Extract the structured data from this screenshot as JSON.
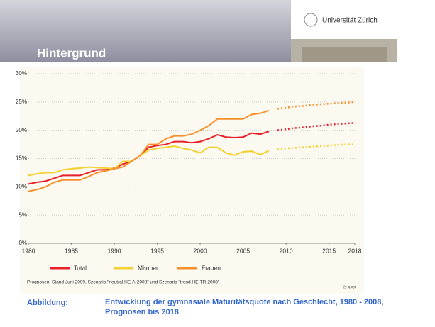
{
  "header": {
    "title": "Hintergrund",
    "logo": "Universität Zürich"
  },
  "caption": {
    "label": "Abbildung:",
    "text": "Entwicklung der gymnasiale Maturitätsquote nach Geschlecht, 1980 - 2008, Prognosen bis 2018"
  },
  "chart_data": {
    "type": "line",
    "note": "Prognosen: Stand Juni 2009, Szenario \"neutral HE-A-2008\" und Szenario \"trend HE-TR-2008\"",
    "source": "© BFS",
    "x": [
      1980,
      1981,
      1982,
      1983,
      1984,
      1985,
      1986,
      1987,
      1988,
      1989,
      1990,
      1991,
      1992,
      1993,
      1994,
      1995,
      1996,
      1997,
      1998,
      1999,
      2000,
      2001,
      2002,
      2003,
      2004,
      2005,
      2006,
      2007,
      2008,
      2009,
      2010,
      2011,
      2012,
      2013,
      2014,
      2015,
      2016,
      2017,
      2018
    ],
    "xlim": [
      1980,
      2018
    ],
    "xticks": [
      1980,
      1985,
      1990,
      1995,
      2000,
      2005,
      2010,
      2015,
      2018
    ],
    "ylim": [
      0,
      30
    ],
    "yticks": [
      {
        "value": 0,
        "label": "0%"
      },
      {
        "value": 5,
        "label": "5%"
      },
      {
        "value": 10,
        "label": "10%"
      },
      {
        "value": 15,
        "label": "15%"
      },
      {
        "value": 20,
        "label": "20%"
      },
      {
        "value": 25,
        "label": "25%"
      },
      {
        "value": 30,
        "label": "30%"
      }
    ],
    "grid": true,
    "series": [
      {
        "name": "Total",
        "color": "#e8202a",
        "values": [
          10.5,
          10.8,
          11,
          11.5,
          12,
          12,
          12,
          12.5,
          13,
          13,
          13.3,
          14,
          14.5,
          15.5,
          17,
          17.3,
          17.5,
          18,
          18,
          17.8,
          18,
          18.5,
          19.2,
          18.8,
          18.7,
          18.8,
          19.5,
          19.3,
          19.8,
          null,
          null,
          null,
          null,
          null,
          null,
          null,
          null,
          null,
          null
        ],
        "forecast": [
          null,
          null,
          null,
          null,
          null,
          null,
          null,
          null,
          null,
          null,
          null,
          null,
          null,
          null,
          null,
          null,
          null,
          null,
          null,
          null,
          null,
          null,
          null,
          null,
          null,
          null,
          null,
          null,
          null,
          20,
          20.2,
          20.4,
          20.5,
          20.7,
          20.8,
          21,
          21.1,
          21.2,
          21.3
        ]
      },
      {
        "name": "Männer",
        "color": "#f2d12e",
        "values": [
          12,
          12.3,
          12.5,
          12.5,
          13,
          13.2,
          13.3,
          13.5,
          13.4,
          13.3,
          13.2,
          14.5,
          14.5,
          15.5,
          16.5,
          16.8,
          17,
          17.2,
          16.8,
          16.5,
          16,
          17,
          17,
          16,
          15.6,
          16.2,
          16.3,
          15.7,
          16.4,
          null,
          null,
          null,
          null,
          null,
          null,
          null,
          null,
          null,
          null
        ],
        "forecast": [
          null,
          null,
          null,
          null,
          null,
          null,
          null,
          null,
          null,
          null,
          null,
          null,
          null,
          null,
          null,
          null,
          null,
          null,
          null,
          null,
          null,
          null,
          null,
          null,
          null,
          null,
          null,
          null,
          null,
          16.6,
          16.8,
          16.9,
          17,
          17.1,
          17.2,
          17.3,
          17.4,
          17.5,
          17.5
        ]
      },
      {
        "name": "Frauen",
        "color": "#f7902a",
        "values": [
          9.2,
          9.5,
          10,
          10.8,
          11.2,
          11.2,
          11.2,
          11.8,
          12.5,
          12.8,
          13.2,
          13.5,
          14.5,
          15.5,
          17.5,
          17.5,
          18.5,
          19,
          19,
          19.3,
          20,
          20.8,
          22,
          22,
          22,
          22,
          22.8,
          23,
          23.5,
          null,
          null,
          null,
          null,
          null,
          null,
          null,
          null,
          null,
          null
        ],
        "forecast": [
          null,
          null,
          null,
          null,
          null,
          null,
          null,
          null,
          null,
          null,
          null,
          null,
          null,
          null,
          null,
          null,
          null,
          null,
          null,
          null,
          null,
          null,
          null,
          null,
          null,
          null,
          null,
          null,
          null,
          23.8,
          24,
          24.2,
          24.3,
          24.5,
          24.6,
          24.7,
          24.8,
          24.9,
          25
        ]
      }
    ]
  }
}
